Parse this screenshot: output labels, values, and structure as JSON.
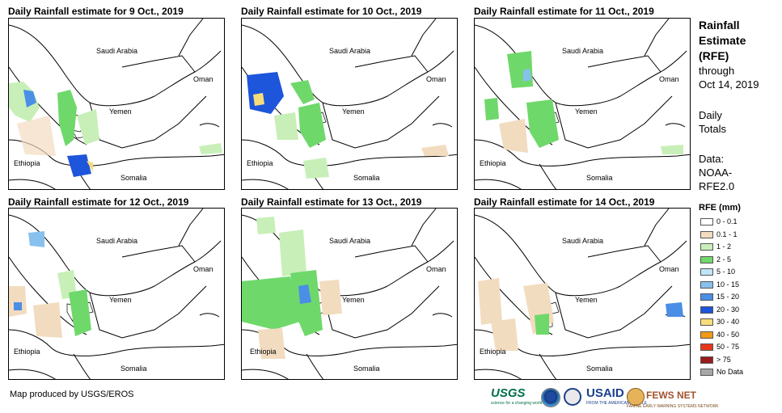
{
  "panels": [
    {
      "title": "Daily Rainfall estimate for 9 Oct., 2019",
      "labels": {
        "saudi": "Saudi Arabia",
        "oman": "Oman",
        "yemen": "Yemen",
        "ethiopia": "Ethiopia",
        "somalia": "Somalia"
      }
    },
    {
      "title": "Daily Rainfall estimate for 10 Oct., 2019",
      "labels": {
        "saudi": "Saudi Arabia",
        "oman": "Oman",
        "yemen": "Yemen",
        "ethiopia": "Ethiopia",
        "somalia": "Somalia"
      }
    },
    {
      "title": "Daily Rainfall estimate for 11 Oct., 2019",
      "labels": {
        "saudi": "Saudi Arabia",
        "oman": "Oman",
        "yemen": "Yemen",
        "ethiopia": "Ethiopia",
        "somalia": "Somalia"
      }
    },
    {
      "title": "Daily Rainfall estimate for 12 Oct., 2019",
      "labels": {
        "saudi": "Saudi Arabia",
        "oman": "Oman",
        "yemen": "Yemen",
        "ethiopia": "Ethiopia",
        "somalia": "Somalia"
      }
    },
    {
      "title": "Daily Rainfall estimate for 13 Oct., 2019",
      "labels": {
        "saudi": "Saudi Arabia",
        "oman": "Oman",
        "yemen": "Yemen",
        "ethiopia": "Ethiopia",
        "somalia": "Somalia"
      }
    },
    {
      "title": "Daily Rainfall estimate for 14 Oct., 2019",
      "labels": {
        "saudi": "Saudi Arabia",
        "oman": "Oman",
        "yemen": "Yemen",
        "ethiopia": "Ethiopia",
        "somalia": "Somalia"
      }
    }
  ],
  "legend": {
    "title_lines": [
      "Rainfall",
      "Estimate",
      "(RFE)"
    ],
    "through": "through",
    "date": "Oct 14, 2019",
    "period_lines": [
      "Daily",
      "Totals"
    ],
    "data_lines": [
      "Data:",
      "NOAA-",
      "RFE2.0"
    ],
    "units": "RFE (mm)",
    "classes": [
      {
        "label": "0 - 0.1",
        "color": "#ffffff"
      },
      {
        "label": "0.1 - 1",
        "color": "#f2dcc0"
      },
      {
        "label": "1 - 2",
        "color": "#c8efb8"
      },
      {
        "label": "2 - 5",
        "color": "#6fd86b"
      },
      {
        "label": "5 - 10",
        "color": "#bfe6f5"
      },
      {
        "label": "10 - 15",
        "color": "#87c1ee"
      },
      {
        "label": "15 - 20",
        "color": "#4a8ee6"
      },
      {
        "label": "20 - 30",
        "color": "#1d55db"
      },
      {
        "label": "30 - 40",
        "color": "#f6dd7a"
      },
      {
        "label": "40 - 50",
        "color": "#f29a12"
      },
      {
        "label": "50 - 75",
        "color": "#e8361a"
      },
      {
        "label": "> 75",
        "color": "#9a1c1c"
      },
      {
        "label": "No Data",
        "color": "#a8a8a8"
      }
    ]
  },
  "credit": "Map produced by USGS/EROS",
  "logos": {
    "usgs": "USGS",
    "usgs_tagline": "science for a changing world",
    "usaid": "USAID",
    "usaid_tagline": "FROM THE AMERICAN PEOPLE",
    "fews": "FEWS NET",
    "fews_tagline": "FAMINE EARLY WARNING SYSTEMS NETWORK"
  }
}
